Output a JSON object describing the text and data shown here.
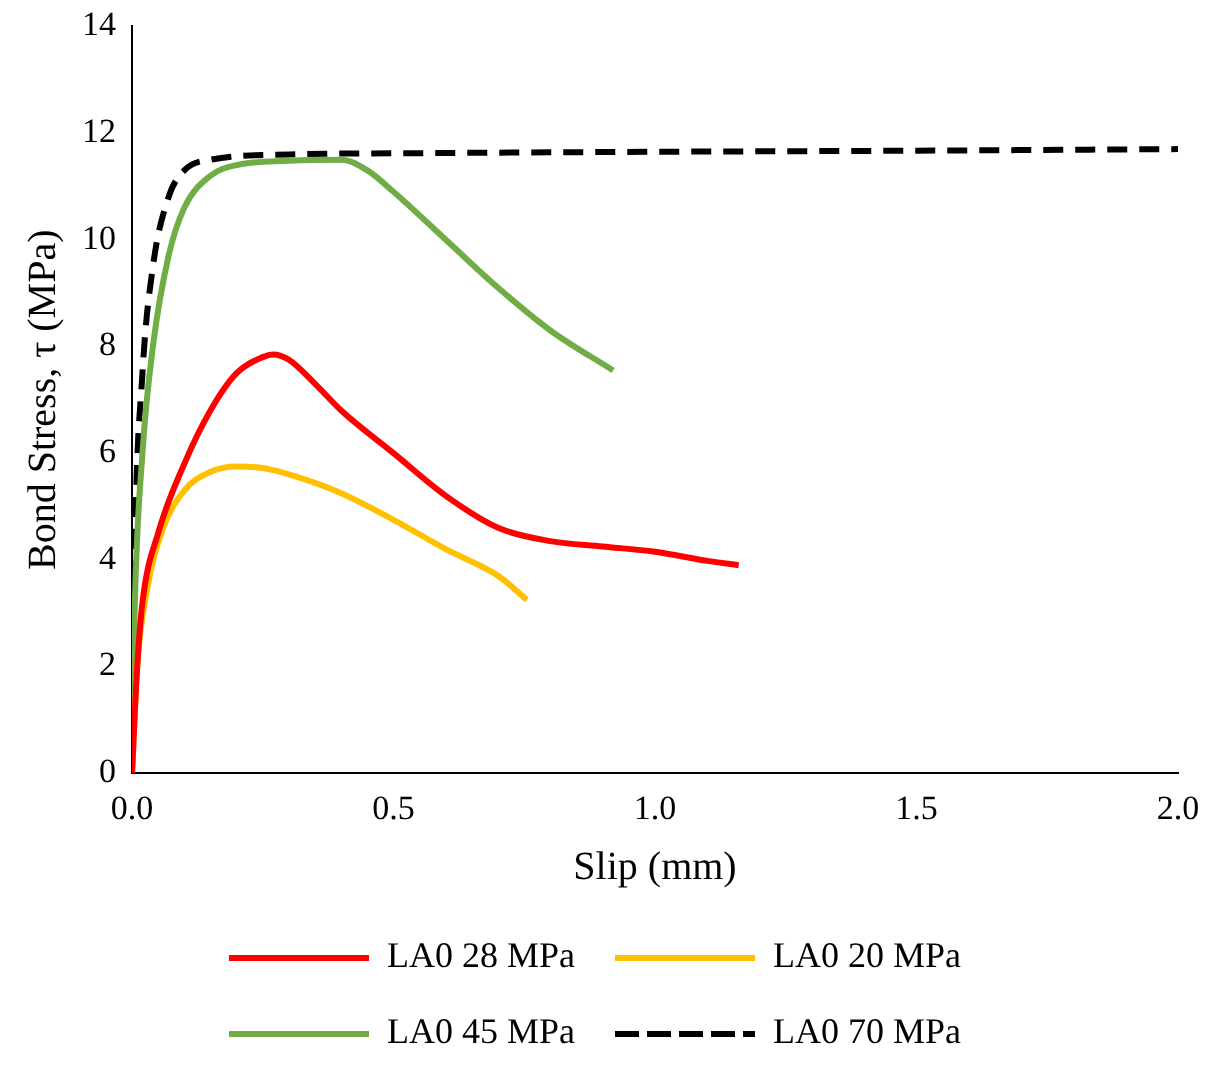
{
  "chart_data": {
    "type": "line",
    "xlabel": "Slip (mm)",
    "ylabel": "Bond Stress, τ (MPa)",
    "xlim": [
      0,
      2
    ],
    "xticks": [
      {
        "value": 0,
        "label": "0.0"
      },
      {
        "value": 0.5,
        "label": "0.5"
      },
      {
        "value": 1,
        "label": "1.0"
      },
      {
        "value": 1.5,
        "label": "1.5"
      },
      {
        "value": 2,
        "label": "2.0"
      }
    ],
    "ylim": [
      0,
      14
    ],
    "yticks": [
      0,
      2,
      4,
      6,
      8,
      10,
      12,
      14
    ],
    "grid": false,
    "legend": "bottom",
    "marker": "none",
    "series": [
      {
        "name": "LA0 28 MPa",
        "color": "#ff0000",
        "line_style": "solid",
        "x": [
          0,
          0.01,
          0.02,
          0.05,
          0.1,
          0.15,
          0.2,
          0.25,
          0.27,
          0.3,
          0.35,
          0.4,
          0.5,
          0.6,
          0.7,
          0.8,
          0.9,
          1.0,
          1.1,
          1.16
        ],
        "values": [
          0,
          2,
          3.2,
          4.5,
          5.8,
          6.8,
          7.5,
          7.8,
          7.85,
          7.75,
          7.3,
          6.8,
          6.0,
          5.2,
          4.6,
          4.35,
          4.25,
          4.15,
          3.98,
          3.9
        ]
      },
      {
        "name": "LA0 20 MPa",
        "color": "#ffc000",
        "line_style": "solid",
        "x": [
          0,
          0.01,
          0.03,
          0.06,
          0.1,
          0.15,
          0.2,
          0.25,
          0.3,
          0.4,
          0.5,
          0.6,
          0.7,
          0.755
        ],
        "values": [
          0,
          2,
          3.5,
          4.6,
          5.3,
          5.65,
          5.75,
          5.72,
          5.6,
          5.25,
          4.75,
          4.2,
          3.7,
          3.25
        ]
      },
      {
        "name": "LA0 45 MPa",
        "color": "#70ad47",
        "line_style": "solid",
        "x": [
          0,
          0.005,
          0.02,
          0.04,
          0.07,
          0.1,
          0.15,
          0.2,
          0.3,
          0.4,
          0.45,
          0.5,
          0.6,
          0.7,
          0.8,
          0.92
        ],
        "values": [
          0,
          3,
          6,
          8,
          9.7,
          10.6,
          11.2,
          11.4,
          11.48,
          11.5,
          11.3,
          10.9,
          10.0,
          9.1,
          8.3,
          7.55
        ]
      },
      {
        "name": "LA0 70 MPa",
        "color": "#000000",
        "line_style": "dashed",
        "x": [
          0,
          0.005,
          0.02,
          0.04,
          0.07,
          0.1,
          0.15,
          0.3,
          0.5,
          1,
          1.5,
          2
        ],
        "values": [
          0,
          4,
          7.5,
          9.5,
          10.8,
          11.3,
          11.5,
          11.6,
          11.62,
          11.65,
          11.67,
          11.7
        ]
      }
    ]
  }
}
